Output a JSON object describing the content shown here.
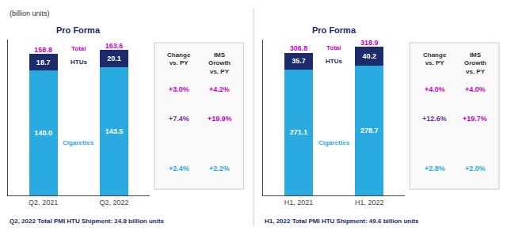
{
  "chart_data": [
    {
      "type": "bar",
      "stacked": true,
      "title": "Pro Forma",
      "ylabel": "(billion units)",
      "categories": [
        "Q2, 2021",
        "Q2, 2022"
      ],
      "series": [
        {
          "name": "Cigarettes",
          "color": "#29ABE2",
          "values": [
            140.0,
            143.5
          ],
          "value_labels": [
            "140.0",
            "143.5"
          ]
        },
        {
          "name": "HTUs",
          "color": "#1B2B6B",
          "values": [
            18.7,
            20.1
          ],
          "value_labels": [
            "18.7",
            "20.1"
          ]
        }
      ],
      "totals": {
        "name": "Total",
        "color": "#CC00CC",
        "values": [
          158.8,
          163.6
        ]
      },
      "ylim": [
        0,
        175
      ],
      "data_labels": true,
      "tick_labels": "x",
      "grid": false,
      "table": {
        "header": [
          "Change\nvs. PY",
          "IMS\nGrowth\nvs. PY"
        ],
        "rows": [
          {
            "values": [
              "+3.0%",
              "+4.2%"
            ],
            "colors": [
              "#CC00CC",
              "#CC00CC"
            ]
          },
          {
            "values": [
              "+7.4%",
              "+19.9%"
            ],
            "colors": [
              "#7030A0",
              "#CC00CC"
            ]
          },
          {
            "values": [
              "+2.4%",
              "+2.2%"
            ],
            "colors": [
              "#29ABE2",
              "#29ABE2"
            ]
          }
        ]
      },
      "footnote": "Q2, 2022 Total PMI HTU Shipment: 24.8 billion units"
    },
    {
      "type": "bar",
      "stacked": true,
      "title": "Pro Forma",
      "categories": [
        "H1, 2021",
        "H1, 2022"
      ],
      "series": [
        {
          "name": "Cigarettes",
          "color": "#29ABE2",
          "values": [
            271.1,
            278.7
          ],
          "value_labels": [
            "271.1",
            "278.7"
          ]
        },
        {
          "name": "HTUs",
          "color": "#1B2B6B",
          "values": [
            35.7,
            40.2
          ],
          "value_labels": [
            "35.7",
            "40.2"
          ]
        }
      ],
      "totals": {
        "name": "Total",
        "color": "#CC00CC",
        "values": [
          306.8,
          318.9
        ]
      },
      "ylim": [
        0,
        335
      ],
      "data_labels": true,
      "tick_labels": "x",
      "grid": false,
      "table": {
        "header": [
          "Change\nvs. PY",
          "IMS\nGrowth\nvs. PY"
        ],
        "rows": [
          {
            "values": [
              "+4.0%",
              "+4.0%"
            ],
            "colors": [
              "#CC00CC",
              "#CC00CC"
            ]
          },
          {
            "values": [
              "+12.6%",
              "+19.7%"
            ],
            "colors": [
              "#7030A0",
              "#CC00CC"
            ]
          },
          {
            "values": [
              "+2.8%",
              "+2.0%"
            ],
            "colors": [
              "#29ABE2",
              "#29ABE2"
            ]
          }
        ]
      },
      "footnote": "H1, 2022 Total PMI HTU Shipment: 49.6 billion units"
    }
  ]
}
